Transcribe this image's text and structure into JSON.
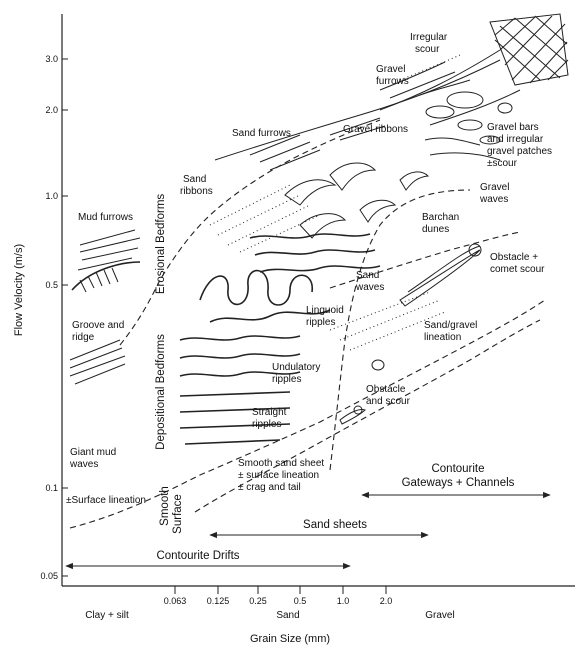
{
  "axes": {
    "y_title": "Flow Velocity (m/s)",
    "x_title": "Grain Size (mm)",
    "y_ticks": [
      "3.0",
      "2.0",
      "1.0",
      "0.5",
      "0.1",
      "0.05"
    ],
    "x_ticks": [
      "0.063",
      "0.125",
      "0.25",
      "0.5",
      "1.0",
      "2.0"
    ],
    "x_classes": [
      "Clay + silt",
      "Sand",
      "Gravel"
    ]
  },
  "zones": {
    "erosional": "Erosional Bedforms",
    "depositional": "Depositional Bedforms",
    "smooth_line1": "Smooth",
    "smooth_line2": "Surface"
  },
  "bedforms": {
    "irregular_scour": [
      "Irregular",
      "scour"
    ],
    "gravel_furrows": [
      "Gravel",
      "furrows"
    ],
    "sand_furrows": "Sand furrows",
    "gravel_ribbons": "Gravel ribbons",
    "gravel_bars": [
      "Gravel bars",
      "and irregular",
      "gravel patches",
      "±scour"
    ],
    "gravel_waves": [
      "Gravel",
      "waves"
    ],
    "barchan_dunes": [
      "Barchan",
      "dunes"
    ],
    "sand_ribbons": [
      "Sand",
      "ribbons"
    ],
    "mud_furrows": "Mud furrows",
    "obstacle_comet": [
      "Obstacle +",
      "comet scour"
    ],
    "sand_waves": [
      "Sand",
      "waves"
    ],
    "linguoid": [
      "Linguoid",
      "ripples"
    ],
    "groove_ridge": [
      "Groove and",
      "ridge"
    ],
    "sand_gravel_lineation": [
      "Sand/gravel",
      "lineation"
    ],
    "undulatory": [
      "Undulatory",
      "ripples"
    ],
    "obstacle_scour": [
      "Obstacle",
      "and scour"
    ],
    "straight": [
      "Straight",
      "ripples"
    ],
    "giant_mud_waves": [
      "Giant mud",
      "waves"
    ],
    "smooth_sheet": [
      "Smooth sand sheet",
      "± surface lineation",
      "± crag and tail"
    ],
    "surface_lineation": "±Surface lineation"
  },
  "ranges": {
    "contourite_gateways": [
      "Contourite",
      "Gateways + Channels"
    ],
    "sand_sheets": "Sand sheets",
    "contourite_drifts": "Contourite Drifts"
  }
}
